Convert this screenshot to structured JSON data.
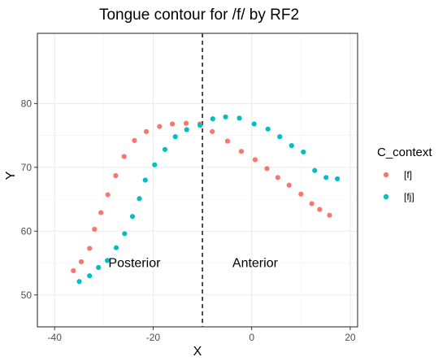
{
  "chart_data": {
    "type": "scatter",
    "title": "Tongue contour for /f/ by RF2",
    "xlabel": "X",
    "ylabel": "Y",
    "xlim": [
      -43.5,
      21.5
    ],
    "ylim": [
      45,
      91
    ],
    "x_ticks": [
      -40,
      -20,
      0,
      20
    ],
    "y_ticks": [
      50,
      60,
      70,
      80
    ],
    "grid": true,
    "legend": {
      "title": "C_context",
      "position": "right"
    },
    "reference_line": {
      "x": -10,
      "style": "dashed"
    },
    "annotations": [
      {
        "text": "Posterior",
        "x": -23.8,
        "y": 55
      },
      {
        "text": "Anterior",
        "x": 0.7,
        "y": 55
      }
    ],
    "series": [
      {
        "name": "[f]",
        "color": "#f8766d",
        "points": [
          [
            -36.2,
            53.8
          ],
          [
            -34.6,
            55.2
          ],
          [
            -32.9,
            57.3
          ],
          [
            -31.9,
            60.3
          ],
          [
            -30.6,
            62.9
          ],
          [
            -29.2,
            65.7
          ],
          [
            -27.6,
            68.7
          ],
          [
            -25.9,
            71.7
          ],
          [
            -23.8,
            74.2
          ],
          [
            -21.4,
            75.6
          ],
          [
            -18.7,
            76.4
          ],
          [
            -16.1,
            76.8
          ],
          [
            -13.3,
            76.9
          ],
          [
            -10.5,
            76.8
          ],
          [
            -8.0,
            75.6
          ],
          [
            -4.9,
            74.1
          ],
          [
            -2.1,
            72.5
          ],
          [
            0.7,
            71.2
          ],
          [
            3.1,
            69.8
          ],
          [
            5.3,
            68.4
          ],
          [
            7.6,
            67.2
          ],
          [
            10.0,
            65.8
          ],
          [
            12.2,
            64.3
          ],
          [
            13.8,
            63.4
          ],
          [
            15.8,
            62.5
          ]
        ]
      },
      {
        "name": "[fj]",
        "color": "#00bfc4",
        "points": [
          [
            -35.0,
            52.1
          ],
          [
            -32.9,
            53.0
          ],
          [
            -31.1,
            54.3
          ],
          [
            -29.3,
            55.4
          ],
          [
            -27.5,
            57.4
          ],
          [
            -25.8,
            59.6
          ],
          [
            -24.2,
            62.3
          ],
          [
            -22.8,
            65.1
          ],
          [
            -21.6,
            68.0
          ],
          [
            -19.7,
            70.4
          ],
          [
            -17.6,
            72.8
          ],
          [
            -15.5,
            74.8
          ],
          [
            -13.2,
            75.9
          ],
          [
            -10.5,
            76.6
          ],
          [
            -7.9,
            77.6
          ],
          [
            -5.3,
            77.9
          ],
          [
            -2.5,
            77.7
          ],
          [
            0.5,
            76.8
          ],
          [
            3.3,
            76.0
          ],
          [
            5.7,
            74.8
          ],
          [
            8.1,
            73.4
          ],
          [
            10.5,
            72.4
          ],
          [
            12.8,
            69.5
          ],
          [
            15.1,
            68.4
          ],
          [
            17.4,
            68.2
          ]
        ]
      }
    ]
  }
}
